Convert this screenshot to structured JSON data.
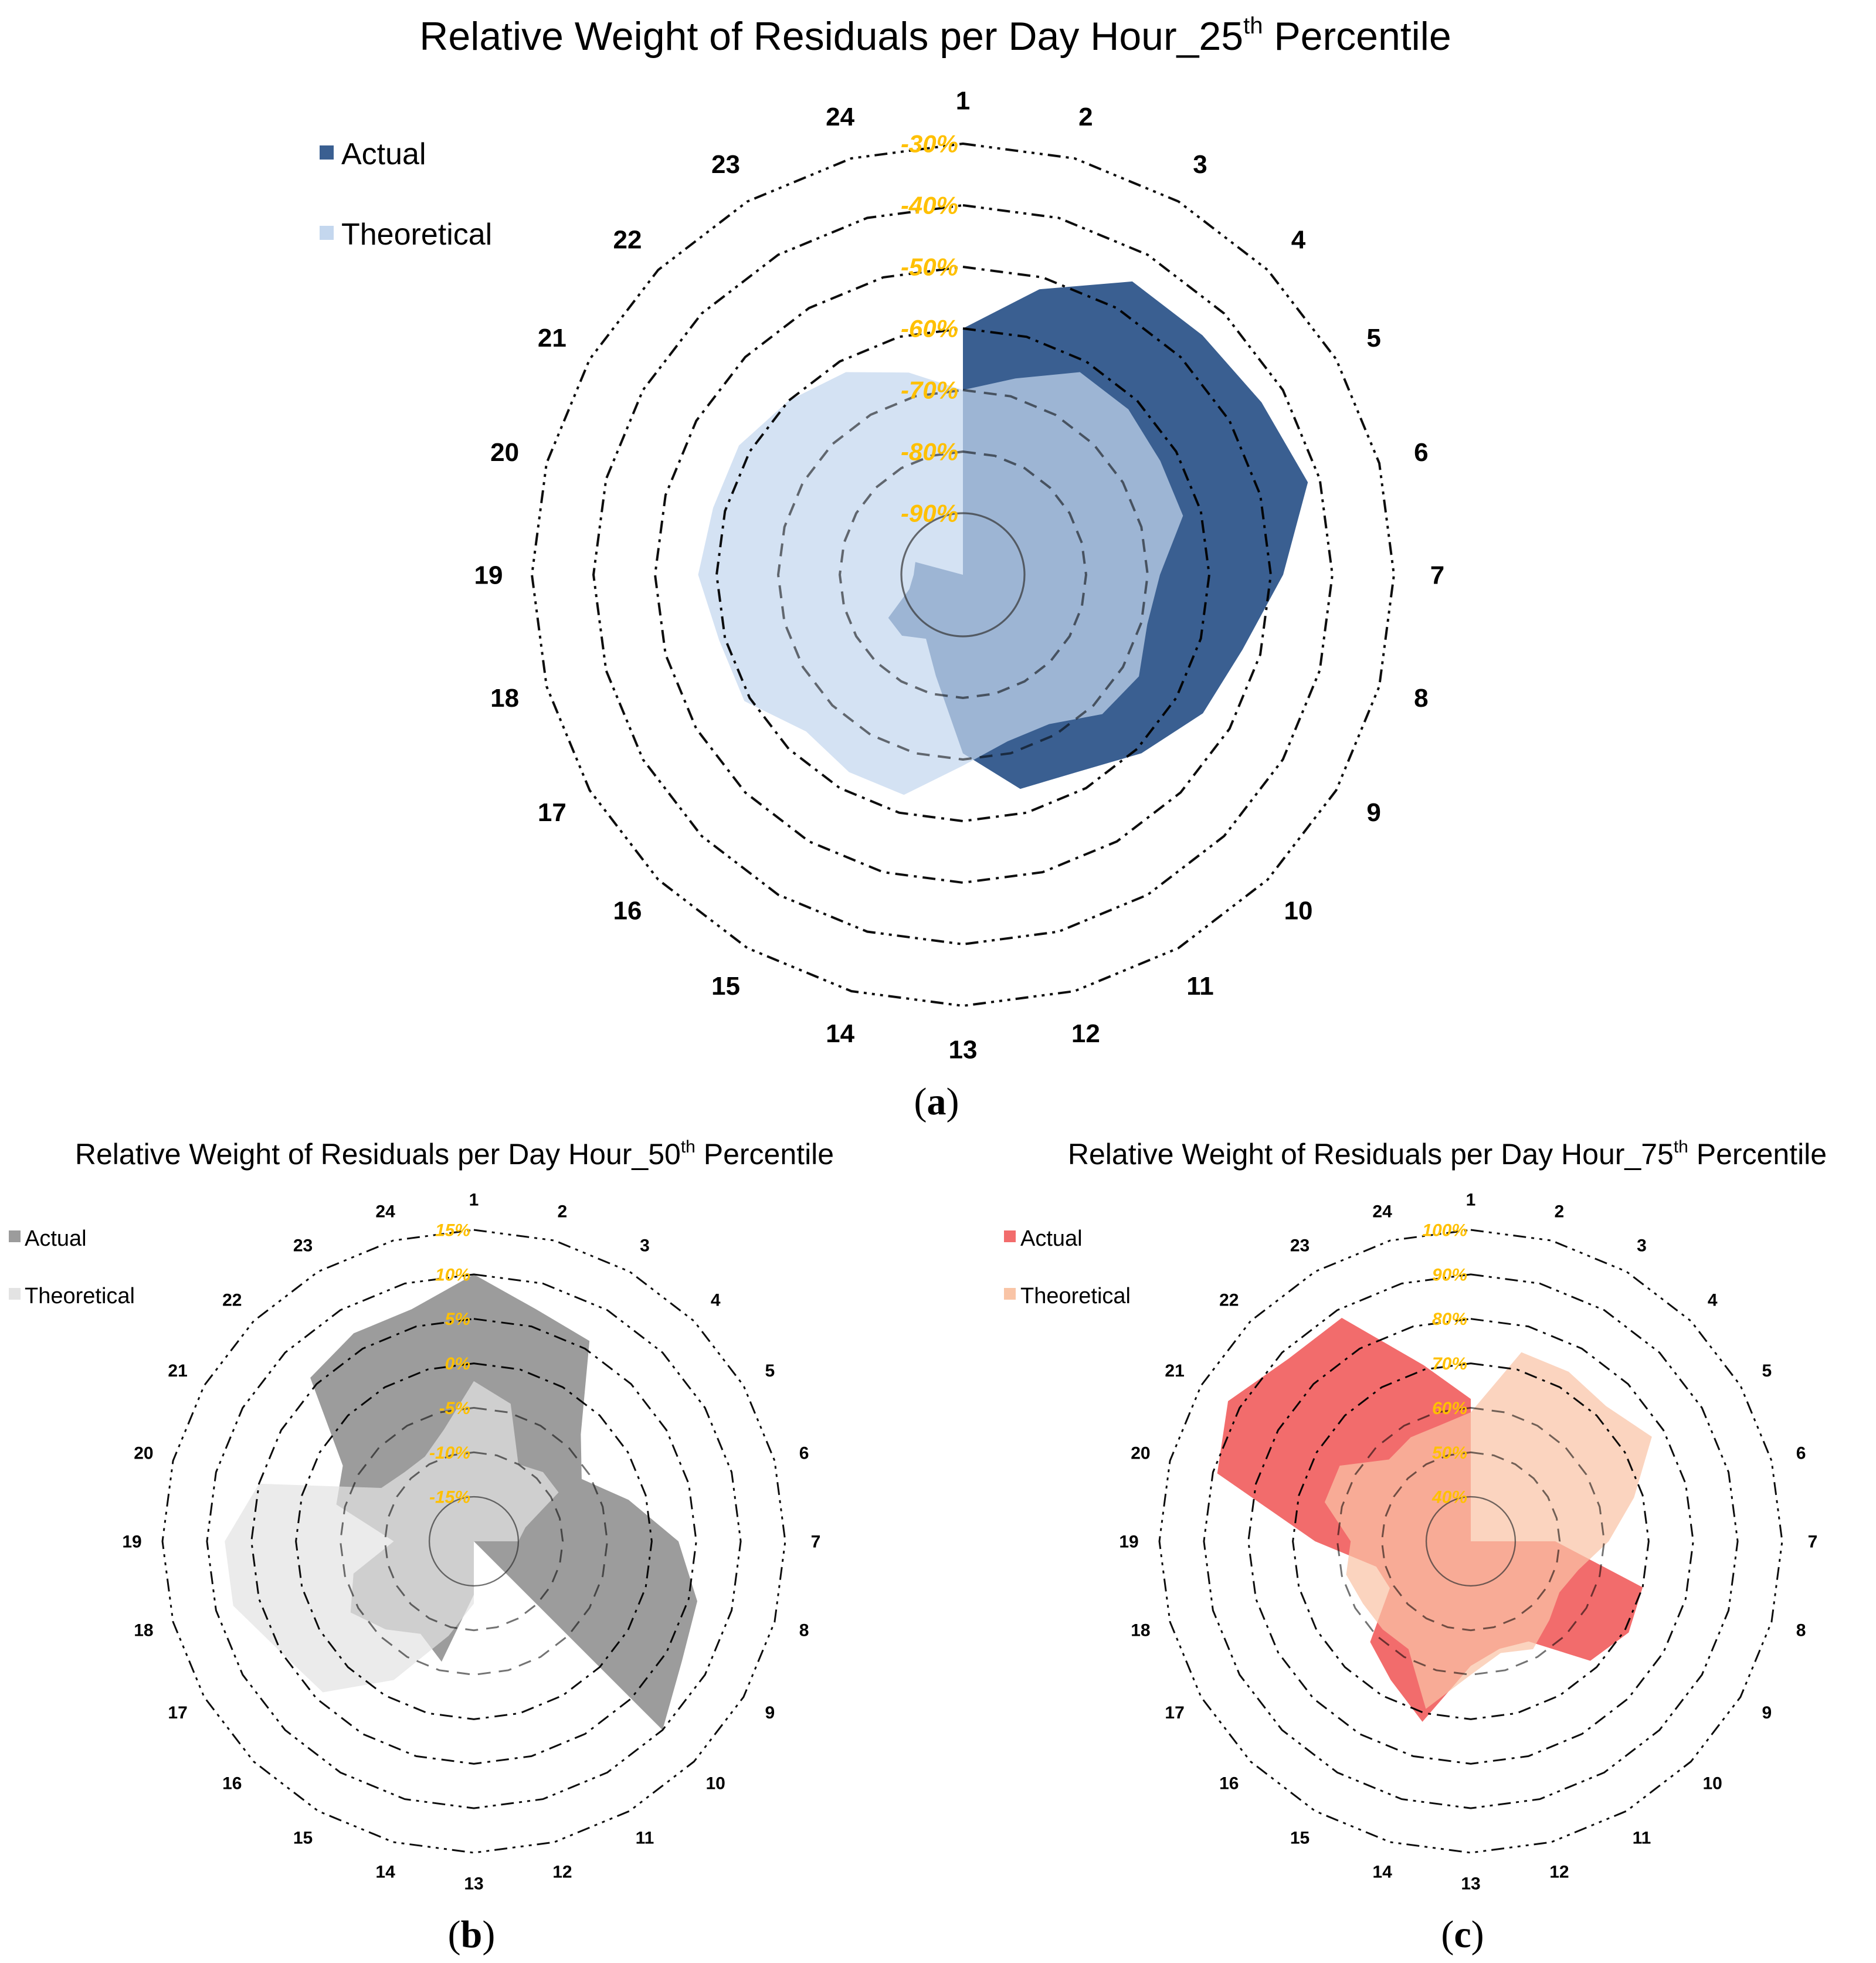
{
  "tick_color": "#FFC000",
  "chart_data": [
    {
      "id": "a",
      "type": "radar",
      "title_main": "Relative Weight of Residuals per Day Hour_25",
      "title_sup": "th",
      "title_end": " Percentile",
      "caption_open": "(",
      "caption_letter": "a",
      "caption_close": ")",
      "categories": [
        "1",
        "2",
        "3",
        "4",
        "5",
        "6",
        "7",
        "8",
        "9",
        "10",
        "11",
        "12",
        "13",
        "14",
        "15",
        "16",
        "17",
        "18",
        "19",
        "20",
        "21",
        "22",
        "23",
        "24"
      ],
      "rmin": -100,
      "rmax": -30,
      "ticks": [
        -90,
        -80,
        -70,
        -60,
        -50,
        -40,
        -30
      ],
      "tick_labels": [
        "-90%",
        "-80%",
        "-70%",
        "-60%",
        "-50%",
        "-40%",
        "-30%"
      ],
      "legend": [
        "Actual",
        "Theoretical"
      ],
      "series": [
        {
          "name": "Actual",
          "color": "#3A5F91",
          "values": [
            -60,
            -52,
            -45,
            -45,
            -44,
            -42,
            -48,
            -53,
            -55,
            -59,
            -63,
            -64,
            -71,
            -83,
            -88,
            -86,
            -86,
            -91,
            -92,
            -92,
            -100,
            -100,
            -100,
            -100
          ]
        },
        {
          "name": "Theoretical",
          "color": "#C4D7EE",
          "values": [
            -70,
            -67,
            -62,
            -62,
            -63,
            -63,
            -68,
            -69,
            -67,
            -68,
            -72,
            -72,
            -69,
            -63,
            -63,
            -64,
            -59,
            -59,
            -57,
            -58,
            -58,
            -60,
            -62,
            -66
          ]
        }
      ]
    },
    {
      "id": "b",
      "type": "radar",
      "title_main": "Relative Weight of Residuals per Day Hour_50",
      "title_sup": "th",
      "title_end": " Percentile",
      "caption_open": "(",
      "caption_letter": "b",
      "caption_close": ")",
      "categories": [
        "1",
        "2",
        "3",
        "4",
        "5",
        "6",
        "7",
        "8",
        "9",
        "10",
        "11",
        "12",
        "13",
        "14",
        "15",
        "16",
        "17",
        "18",
        "19",
        "20",
        "21",
        "22",
        "23",
        "24"
      ],
      "rmin": -20,
      "rmax": 15,
      "ticks": [
        -15,
        -10,
        -5,
        0,
        5,
        10,
        15
      ],
      "tick_labels": [
        "-15%",
        "-10%",
        "-5%",
        "0%",
        "5%",
        "10%",
        "15%"
      ],
      "legend": [
        "Actual",
        "Theoretical"
      ],
      "series": [
        {
          "name": "Actual",
          "color": "#9C9C9C",
          "values": [
            10,
            7,
            6,
            -3,
            -6,
            -2,
            3,
            6,
            7,
            10,
            -20,
            -20,
            -14,
            -6,
            -8,
            -6,
            -4,
            -6,
            -11,
            -4,
            -3,
            6,
            7,
            7
          ]
        },
        {
          "name": "Theoretical",
          "color": "#E3E3E3",
          "values": [
            -2,
            -4,
            -10,
            -9,
            -9,
            -14,
            -15,
            -20,
            -20,
            -20,
            -20,
            -20,
            -13,
            -9,
            -2,
            4,
            5,
            8,
            8,
            5,
            -8,
            -9,
            -9,
            -7
          ]
        }
      ]
    },
    {
      "id": "c",
      "type": "radar",
      "title_main": "Relative Weight of Residuals per Day Hour_75",
      "title_sup": "th",
      "title_end": " Percentile",
      "caption_open": "(",
      "caption_letter": "c",
      "caption_close": ")",
      "categories": [
        "1",
        "2",
        "3",
        "4",
        "5",
        "6",
        "7",
        "8",
        "9",
        "10",
        "11",
        "12",
        "13",
        "14",
        "15",
        "16",
        "17",
        "18",
        "19",
        "20",
        "21",
        "22",
        "23",
        "24"
      ],
      "rmin": 30,
      "rmax": 100,
      "ticks": [
        40,
        50,
        60,
        70,
        80,
        90,
        100
      ],
      "tick_labels": [
        "40%",
        "50%",
        "60%",
        "70%",
        "80%",
        "90%",
        "100%"
      ],
      "legend": [
        "Actual",
        "Theoretical"
      ],
      "series": [
        {
          "name": "Actual",
          "color": "#F26C6C",
          "values": [
            62,
            30,
            30,
            30,
            30,
            30,
            49,
            70,
            71,
            68,
            56,
            55,
            58,
            72,
            66,
            62,
            51,
            52,
            65,
            89,
            93,
            88,
            88,
            71
          ]
        },
        {
          "name": "Theoretical",
          "color": "#F9C4A6",
          "values": [
            59,
            74,
            74,
            73,
            77,
            68,
            61,
            55,
            53,
            55,
            58,
            56,
            60,
            69,
            58,
            58,
            58,
            59,
            57,
            64,
            64,
            56,
            57,
            57
          ]
        }
      ]
    }
  ]
}
